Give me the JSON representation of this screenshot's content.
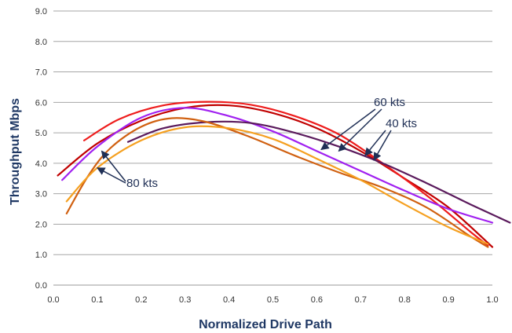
{
  "chart_data": {
    "type": "line",
    "title": "",
    "xlabel": "Normalized Drive Path",
    "ylabel": "Throughput Mbps",
    "xlim": [
      0,
      1.0
    ],
    "ylim": [
      0,
      9.0
    ],
    "x_ticks": [
      "0.0",
      "0.1",
      "0.2",
      "0.3",
      "0.4",
      "0.5",
      "0.6",
      "0.7",
      "0.8",
      "0.9",
      "1.0"
    ],
    "y_ticks": [
      "0.0",
      "1.0",
      "2.0",
      "3.0",
      "4.0",
      "5.0",
      "6.0",
      "7.0",
      "8.0",
      "9.0"
    ],
    "grid": "horizontal",
    "legend": "none",
    "series": [
      {
        "color": "#c00000",
        "x": [
          0.01,
          0.1,
          0.2,
          0.3,
          0.4,
          0.5,
          0.6,
          0.7,
          0.8,
          0.9,
          1.0
        ],
        "y": [
          3.6,
          4.65,
          5.4,
          5.82,
          5.9,
          5.65,
          5.15,
          4.4,
          3.5,
          2.55,
          1.25
        ]
      },
      {
        "color": "#ee1c1c",
        "x": [
          0.07,
          0.15,
          0.25,
          0.35,
          0.45,
          0.55,
          0.65,
          0.75,
          0.85,
          0.95,
          0.99
        ],
        "y": [
          4.75,
          5.45,
          5.9,
          6.02,
          5.92,
          5.55,
          4.95,
          4.0,
          2.95,
          1.75,
          1.3
        ]
      },
      {
        "color": "#a020f0",
        "x": [
          0.02,
          0.1,
          0.2,
          0.3,
          0.4,
          0.5,
          0.6,
          0.7,
          0.8,
          0.9,
          1.0
        ],
        "y": [
          3.45,
          4.55,
          5.5,
          5.82,
          5.55,
          5.05,
          4.4,
          3.75,
          3.1,
          2.5,
          2.05
        ]
      },
      {
        "color": "#5a1a5c",
        "x": [
          0.17,
          0.25,
          0.35,
          0.45,
          0.55,
          0.65,
          0.75,
          0.85,
          0.95,
          1.04
        ],
        "y": [
          4.7,
          5.15,
          5.35,
          5.32,
          5.0,
          4.55,
          4.0,
          3.35,
          2.65,
          2.05
        ]
      },
      {
        "color": "#d06010",
        "x": [
          0.03,
          0.08,
          0.13,
          0.2,
          0.27,
          0.35,
          0.45,
          0.55,
          0.65,
          0.75,
          0.85,
          0.95,
          0.99
        ],
        "y": [
          2.35,
          3.6,
          4.5,
          5.2,
          5.48,
          5.35,
          4.85,
          4.25,
          3.7,
          3.2,
          2.55,
          1.6,
          1.25
        ]
      },
      {
        "color": "#f5a020",
        "x": [
          0.03,
          0.1,
          0.2,
          0.3,
          0.4,
          0.5,
          0.6,
          0.7,
          0.8,
          0.9,
          0.99
        ],
        "y": [
          2.75,
          3.85,
          4.75,
          5.18,
          5.15,
          4.8,
          4.15,
          3.45,
          2.65,
          1.9,
          1.35
        ]
      }
    ],
    "annotations": [
      {
        "label": "60 kts",
        "pointers": [
          [
            0.61,
            4.45
          ],
          [
            0.65,
            4.4
          ]
        ]
      },
      {
        "label": "40 kts",
        "pointers": [
          [
            0.71,
            4.25
          ],
          [
            0.73,
            4.1
          ]
        ]
      },
      {
        "label": "80 kts",
        "pointers": [
          [
            0.11,
            4.4
          ],
          [
            0.1,
            3.85
          ]
        ]
      }
    ]
  }
}
